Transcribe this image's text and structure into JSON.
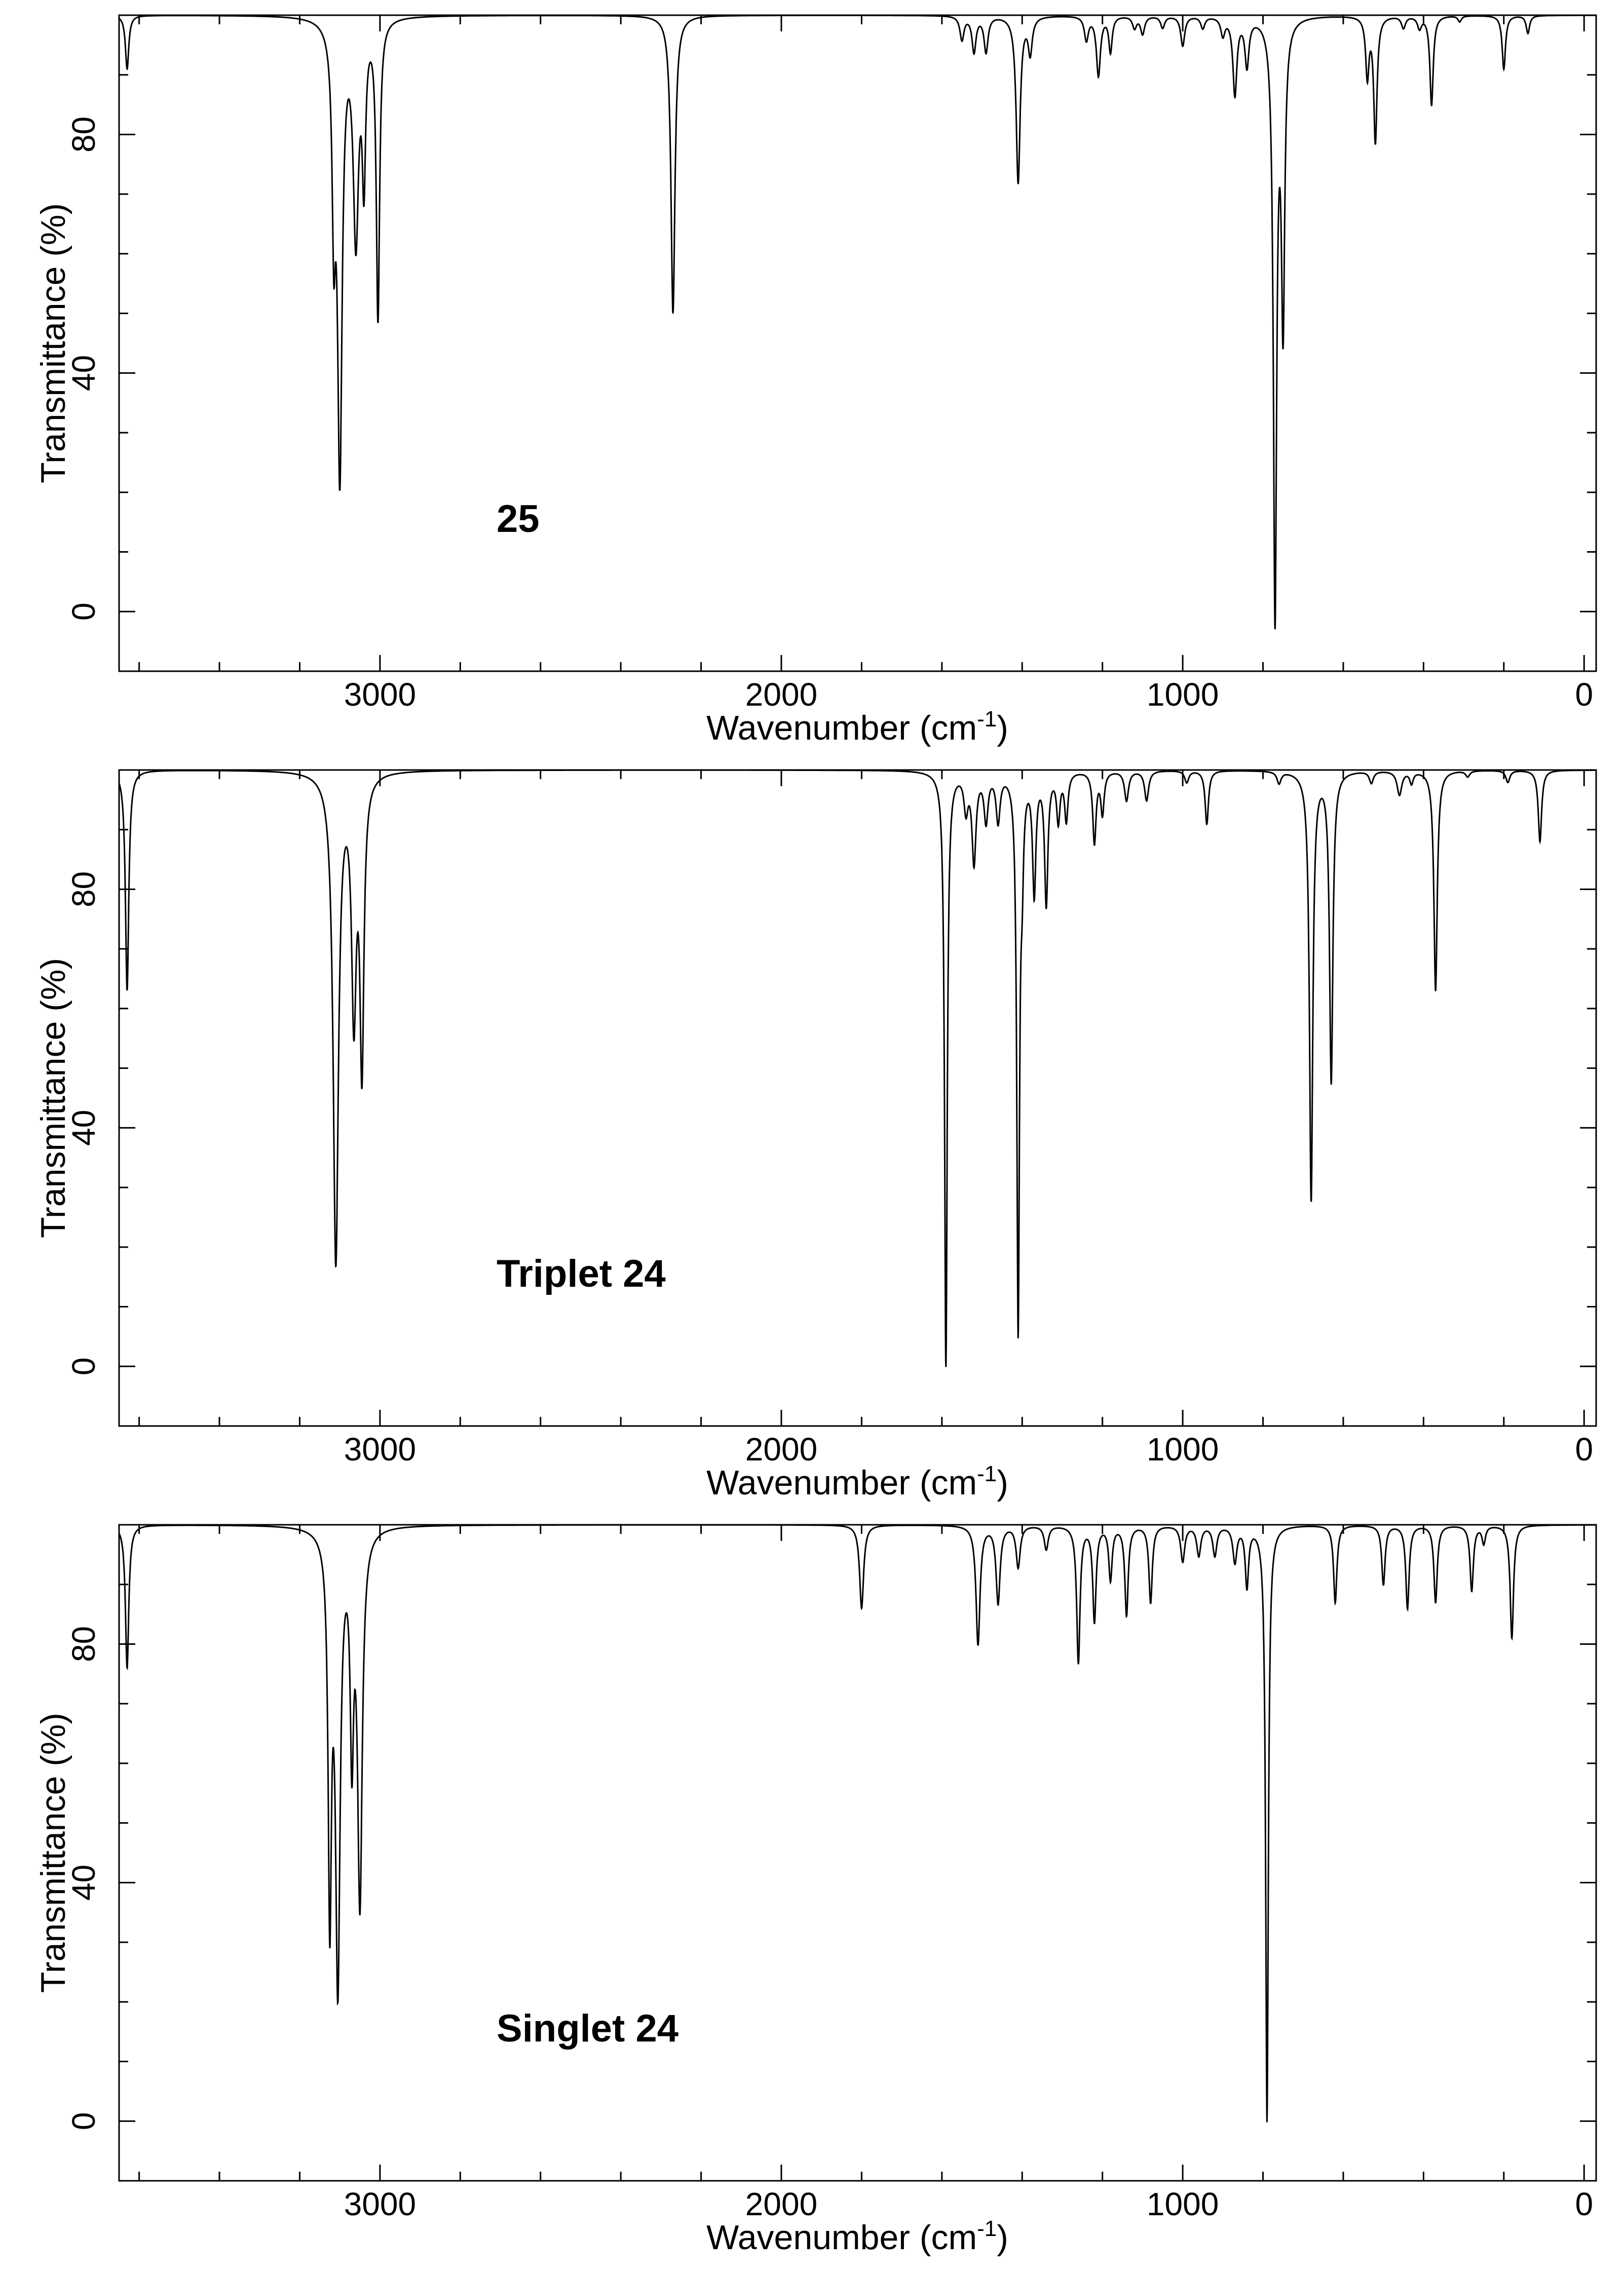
{
  "chart_data": [
    {
      "type": "line",
      "label": "25",
      "xlabel": "Wavenumber (cm",
      "xlabel_sup": "-1",
      "xlabel_end": ")",
      "ylabel": "Transmittance (%)",
      "xlim": [
        3650,
        -30
      ],
      "ylim": [
        -10,
        100
      ],
      "xticks": [
        3000,
        2000,
        1000,
        0
      ],
      "yticks": [
        0,
        40,
        80
      ],
      "grid": false,
      "line_color": "#000000",
      "peaks": [
        {
          "x": 3630,
          "t": 91,
          "w": 5
        },
        {
          "x": 3115,
          "t": 69,
          "w": 5
        },
        {
          "x": 3100,
          "t": 25,
          "w": 7
        },
        {
          "x": 3060,
          "t": 64,
          "w": 8
        },
        {
          "x": 3040,
          "t": 75,
          "w": 5
        },
        {
          "x": 3005,
          "t": 50,
          "w": 5
        },
        {
          "x": 2270,
          "t": 50,
          "w": 6
        },
        {
          "x": 1550,
          "t": 96,
          "w": 6
        },
        {
          "x": 1520,
          "t": 94,
          "w": 6
        },
        {
          "x": 1490,
          "t": 94,
          "w": 6
        },
        {
          "x": 1410,
          "t": 72,
          "w": 6
        },
        {
          "x": 1380,
          "t": 94,
          "w": 6
        },
        {
          "x": 1240,
          "t": 96,
          "w": 6
        },
        {
          "x": 1210,
          "t": 90,
          "w": 6
        },
        {
          "x": 1180,
          "t": 94,
          "w": 5
        },
        {
          "x": 1120,
          "t": 98,
          "w": 6
        },
        {
          "x": 1100,
          "t": 97,
          "w": 6
        },
        {
          "x": 1050,
          "t": 98,
          "w": 6
        },
        {
          "x": 1000,
          "t": 95,
          "w": 6
        },
        {
          "x": 950,
          "t": 98,
          "w": 6
        },
        {
          "x": 900,
          "t": 97,
          "w": 6
        },
        {
          "x": 870,
          "t": 87,
          "w": 6
        },
        {
          "x": 840,
          "t": 92,
          "w": 6
        },
        {
          "x": 770,
          "t": 0,
          "w": 5
        },
        {
          "x": 750,
          "t": 50,
          "w": 5
        },
        {
          "x": 540,
          "t": 90,
          "w": 5
        },
        {
          "x": 520,
          "t": 79,
          "w": 5
        },
        {
          "x": 450,
          "t": 98,
          "w": 6
        },
        {
          "x": 410,
          "t": 98,
          "w": 6
        },
        {
          "x": 380,
          "t": 85,
          "w": 5
        },
        {
          "x": 310,
          "t": 99,
          "w": 5
        },
        {
          "x": 200,
          "t": 91,
          "w": 5
        },
        {
          "x": 140,
          "t": 97,
          "w": 5
        }
      ]
    },
    {
      "type": "line",
      "label": "Triplet 24",
      "xlabel": "Wavenumber (cm",
      "xlabel_sup": "-1",
      "xlabel_end": ")",
      "ylabel": "Transmittance (%)",
      "xlim": [
        3650,
        -30
      ],
      "ylim": [
        -10,
        100
      ],
      "xticks": [
        3000,
        2000,
        1000,
        0
      ],
      "yticks": [
        0,
        40,
        80
      ],
      "grid": false,
      "line_color": "#000000",
      "peaks": [
        {
          "x": 3630,
          "t": 63,
          "w": 5
        },
        {
          "x": 3110,
          "t": 18,
          "w": 8
        },
        {
          "x": 3065,
          "t": 61,
          "w": 7
        },
        {
          "x": 3045,
          "t": 52,
          "w": 6
        },
        {
          "x": 1590,
          "t": 0,
          "w": 4
        },
        {
          "x": 1540,
          "t": 94,
          "w": 6
        },
        {
          "x": 1520,
          "t": 85,
          "w": 6
        },
        {
          "x": 1490,
          "t": 92,
          "w": 6
        },
        {
          "x": 1460,
          "t": 92,
          "w": 6
        },
        {
          "x": 1410,
          "t": 7,
          "w": 4
        },
        {
          "x": 1400,
          "t": 88,
          "w": 4
        },
        {
          "x": 1370,
          "t": 80,
          "w": 5
        },
        {
          "x": 1340,
          "t": 78,
          "w": 5
        },
        {
          "x": 1310,
          "t": 92,
          "w": 5
        },
        {
          "x": 1290,
          "t": 92,
          "w": 5
        },
        {
          "x": 1220,
          "t": 88,
          "w": 5
        },
        {
          "x": 1200,
          "t": 93,
          "w": 5
        },
        {
          "x": 1140,
          "t": 95,
          "w": 6
        },
        {
          "x": 1090,
          "t": 95,
          "w": 6
        },
        {
          "x": 990,
          "t": 98,
          "w": 6
        },
        {
          "x": 940,
          "t": 91,
          "w": 5
        },
        {
          "x": 760,
          "t": 98,
          "w": 6
        },
        {
          "x": 680,
          "t": 28,
          "w": 5
        },
        {
          "x": 630,
          "t": 48,
          "w": 5
        },
        {
          "x": 530,
          "t": 98,
          "w": 6
        },
        {
          "x": 460,
          "t": 96,
          "w": 7
        },
        {
          "x": 430,
          "t": 98,
          "w": 5
        },
        {
          "x": 370,
          "t": 63,
          "w": 5
        },
        {
          "x": 290,
          "t": 99,
          "w": 6
        },
        {
          "x": 190,
          "t": 98,
          "w": 6
        },
        {
          "x": 110,
          "t": 88,
          "w": 5
        }
      ]
    },
    {
      "type": "line",
      "label": "Singlet 24",
      "xlabel": "Wavenumber (cm",
      "xlabel_sup": "-1",
      "xlabel_end": ")",
      "ylabel": "Transmittance (%)",
      "xlim": [
        3650,
        -30
      ],
      "ylim": [
        -10,
        100
      ],
      "xticks": [
        3000,
        2000,
        1000,
        0
      ],
      "yticks": [
        0,
        40,
        80
      ],
      "grid": false,
      "line_color": "#000000",
      "peaks": [
        {
          "x": 3630,
          "t": 76,
          "w": 5
        },
        {
          "x": 3125,
          "t": 38,
          "w": 5
        },
        {
          "x": 3105,
          "t": 25,
          "w": 7
        },
        {
          "x": 3070,
          "t": 66,
          "w": 5
        },
        {
          "x": 3050,
          "t": 38,
          "w": 7
        },
        {
          "x": 1800,
          "t": 86,
          "w": 6
        },
        {
          "x": 1510,
          "t": 80,
          "w": 6
        },
        {
          "x": 1460,
          "t": 87,
          "w": 6
        },
        {
          "x": 1410,
          "t": 93,
          "w": 6
        },
        {
          "x": 1340,
          "t": 96,
          "w": 6
        },
        {
          "x": 1260,
          "t": 77,
          "w": 5
        },
        {
          "x": 1220,
          "t": 84,
          "w": 5
        },
        {
          "x": 1180,
          "t": 91,
          "w": 5
        },
        {
          "x": 1140,
          "t": 85,
          "w": 5
        },
        {
          "x": 1080,
          "t": 87,
          "w": 5
        },
        {
          "x": 1000,
          "t": 94,
          "w": 6
        },
        {
          "x": 960,
          "t": 95,
          "w": 6
        },
        {
          "x": 920,
          "t": 95,
          "w": 6
        },
        {
          "x": 870,
          "t": 94,
          "w": 6
        },
        {
          "x": 840,
          "t": 90,
          "w": 5
        },
        {
          "x": 790,
          "t": 0,
          "w": 4
        },
        {
          "x": 620,
          "t": 87,
          "w": 5
        },
        {
          "x": 500,
          "t": 90,
          "w": 5
        },
        {
          "x": 440,
          "t": 86,
          "w": 5
        },
        {
          "x": 370,
          "t": 87,
          "w": 5
        },
        {
          "x": 280,
          "t": 89,
          "w": 5
        },
        {
          "x": 250,
          "t": 97,
          "w": 5
        },
        {
          "x": 180,
          "t": 81,
          "w": 5
        }
      ]
    }
  ]
}
